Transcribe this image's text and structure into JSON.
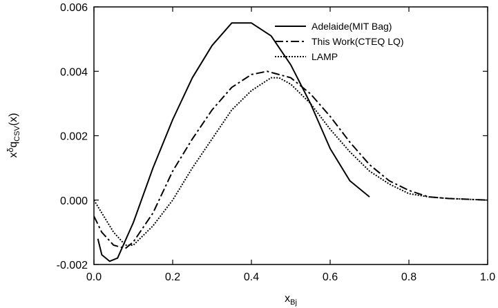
{
  "chart_data": {
    "type": "line",
    "title": "",
    "xlabel": {
      "main": "x",
      "sub": "Bj"
    },
    "ylabel": {
      "prefix": "x",
      "delta": "δ",
      "q": "q",
      "sub": "CSV",
      "suffix": "(x)"
    },
    "xlim": [
      0.0,
      1.0
    ],
    "ylim": [
      -0.002,
      0.006
    ],
    "x_ticks": [
      0.0,
      0.2,
      0.4,
      0.6,
      0.8,
      1.0
    ],
    "x_tick_labels": [
      "0.0",
      "0.2",
      "0.4",
      "0.6",
      "0.8",
      "1.0"
    ],
    "y_ticks": [
      -0.002,
      0.0,
      0.002,
      0.004,
      0.006
    ],
    "y_tick_labels": [
      "-0.002",
      "0.000",
      "0.002",
      "0.004",
      "0.006"
    ],
    "grid": false,
    "legend_position": "top-right",
    "series": [
      {
        "name": "Adelaide(MIT Bag)",
        "style": "solid",
        "points": [
          [
            0.01,
            -0.0012
          ],
          [
            0.02,
            -0.0017
          ],
          [
            0.04,
            -0.0019
          ],
          [
            0.06,
            -0.0018
          ],
          [
            0.1,
            -0.0007
          ],
          [
            0.15,
            0.001
          ],
          [
            0.2,
            0.0025
          ],
          [
            0.25,
            0.0038
          ],
          [
            0.3,
            0.0048
          ],
          [
            0.35,
            0.0055
          ],
          [
            0.4,
            0.0055
          ],
          [
            0.45,
            0.0051
          ],
          [
            0.5,
            0.0042
          ],
          [
            0.55,
            0.003
          ],
          [
            0.6,
            0.0016
          ],
          [
            0.65,
            0.0006
          ],
          [
            0.7,
            0.0001
          ]
        ]
      },
      {
        "name": "This Work(CTEQ LQ)",
        "style": "dashdot",
        "points": [
          [
            0.0,
            -0.0005
          ],
          [
            0.02,
            -0.001
          ],
          [
            0.05,
            -0.0014
          ],
          [
            0.08,
            -0.0015
          ],
          [
            0.1,
            -0.0013
          ],
          [
            0.15,
            -0.0004
          ],
          [
            0.2,
            0.0009
          ],
          [
            0.25,
            0.0019
          ],
          [
            0.3,
            0.0028
          ],
          [
            0.35,
            0.0035
          ],
          [
            0.4,
            0.0039
          ],
          [
            0.44,
            0.004
          ],
          [
            0.5,
            0.0038
          ],
          [
            0.55,
            0.0033
          ],
          [
            0.6,
            0.0026
          ],
          [
            0.65,
            0.0018
          ],
          [
            0.7,
            0.0011
          ],
          [
            0.75,
            0.0006
          ],
          [
            0.8,
            0.0003
          ],
          [
            0.85,
            0.0001
          ],
          [
            0.9,
            5e-05
          ],
          [
            1.0,
            0.0
          ]
        ]
      },
      {
        "name": "LAMP",
        "style": "dotted",
        "points": [
          [
            0.0,
            0.0
          ],
          [
            0.02,
            -0.0004
          ],
          [
            0.05,
            -0.001
          ],
          [
            0.08,
            -0.0014
          ],
          [
            0.1,
            -0.0014
          ],
          [
            0.15,
            -0.0008
          ],
          [
            0.2,
            0.0
          ],
          [
            0.25,
            0.001
          ],
          [
            0.3,
            0.0019
          ],
          [
            0.35,
            0.0028
          ],
          [
            0.4,
            0.0034
          ],
          [
            0.45,
            0.0038
          ],
          [
            0.47,
            0.0038
          ],
          [
            0.5,
            0.0036
          ],
          [
            0.55,
            0.003
          ],
          [
            0.6,
            0.0022
          ],
          [
            0.65,
            0.0015
          ],
          [
            0.7,
            0.0009
          ],
          [
            0.75,
            0.0005
          ],
          [
            0.8,
            0.0002
          ],
          [
            0.85,
            0.0001
          ],
          [
            0.9,
            5e-05
          ],
          [
            1.0,
            0.0
          ]
        ]
      }
    ]
  }
}
